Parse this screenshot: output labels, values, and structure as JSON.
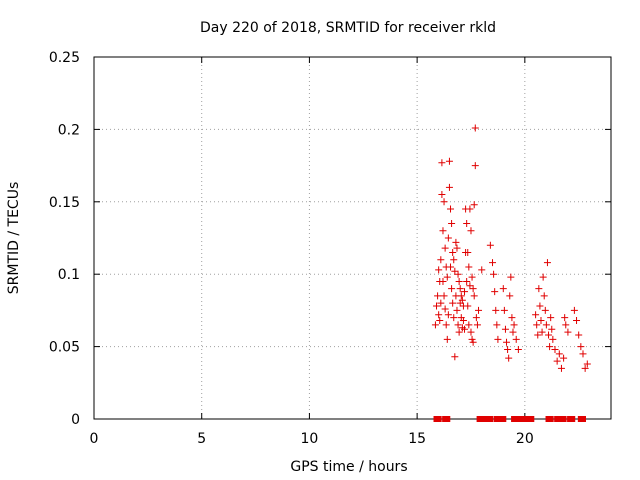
{
  "chart_data": {
    "type": "scatter",
    "title": "Day 220 of 2018, SRMTID for receiver rkld",
    "xlabel": "GPS time / hours",
    "ylabel": "SRMTID / TECUs",
    "xlim": [
      0,
      24
    ],
    "ylim": [
      0,
      0.25
    ],
    "x_ticks": [
      0,
      5,
      10,
      15,
      20
    ],
    "y_ticks": [
      0,
      0.05,
      0.1,
      0.15,
      0.2,
      0.25
    ],
    "x_tick_labels": [
      "0",
      "5",
      "10",
      "15",
      "20"
    ],
    "y_tick_labels": [
      "0",
      "0.05",
      "0.1",
      "0.15",
      "0.2",
      "0.25"
    ],
    "grid": true,
    "marker": "plus",
    "color": "#e00000",
    "series": [
      {
        "values": [
          [
            15.85,
            0.065
          ],
          [
            15.9,
            0.078
          ],
          [
            15.95,
            0.085
          ],
          [
            16.0,
            0.103
          ],
          [
            16.0,
            0.072
          ],
          [
            16.05,
            0.095
          ],
          [
            16.05,
            0.068
          ],
          [
            16.1,
            0.11
          ],
          [
            16.1,
            0.08
          ],
          [
            16.15,
            0.177
          ],
          [
            16.15,
            0.155
          ],
          [
            16.2,
            0.13
          ],
          [
            16.2,
            0.095
          ],
          [
            16.25,
            0.15
          ],
          [
            16.25,
            0.085
          ],
          [
            16.3,
            0.118
          ],
          [
            16.3,
            0.076
          ],
          [
            16.35,
            0.105
          ],
          [
            16.35,
            0.065
          ],
          [
            16.4,
            0.098
          ],
          [
            16.4,
            0.055
          ],
          [
            16.45,
            0.125
          ],
          [
            16.45,
            0.072
          ],
          [
            16.5,
            0.178
          ],
          [
            16.5,
            0.16
          ],
          [
            16.55,
            0.145
          ],
          [
            16.55,
            0.105
          ],
          [
            16.6,
            0.135
          ],
          [
            16.6,
            0.09
          ],
          [
            16.65,
            0.115
          ],
          [
            16.65,
            0.08
          ],
          [
            16.7,
            0.11
          ],
          [
            16.7,
            0.07
          ],
          [
            16.75,
            0.102
          ],
          [
            16.75,
            0.043
          ],
          [
            16.8,
            0.122
          ],
          [
            16.8,
            0.085
          ],
          [
            16.85,
            0.118
          ],
          [
            16.85,
            0.075
          ],
          [
            16.9,
            0.1
          ],
          [
            16.9,
            0.065
          ],
          [
            16.95,
            0.095
          ],
          [
            16.95,
            0.06
          ],
          [
            17.0,
            0.09
          ],
          [
            17.0,
            0.08
          ],
          [
            17.05,
            0.085
          ],
          [
            17.05,
            0.07
          ],
          [
            17.1,
            0.082
          ],
          [
            17.1,
            0.063
          ],
          [
            17.15,
            0.078
          ],
          [
            17.15,
            0.068
          ],
          [
            17.2,
            0.088
          ],
          [
            17.2,
            0.062
          ],
          [
            17.25,
            0.145
          ],
          [
            17.25,
            0.115
          ],
          [
            17.3,
            0.135
          ],
          [
            17.3,
            0.095
          ],
          [
            17.35,
            0.115
          ],
          [
            17.35,
            0.078
          ],
          [
            17.4,
            0.105
          ],
          [
            17.4,
            0.065
          ],
          [
            17.45,
            0.145
          ],
          [
            17.45,
            0.092
          ],
          [
            17.5,
            0.13
          ],
          [
            17.5,
            0.06
          ],
          [
            17.55,
            0.098
          ],
          [
            17.55,
            0.055
          ],
          [
            17.6,
            0.09
          ],
          [
            17.6,
            0.053
          ],
          [
            17.65,
            0.148
          ],
          [
            17.65,
            0.085
          ],
          [
            17.7,
            0.201
          ],
          [
            17.7,
            0.175
          ],
          [
            17.75,
            0.07
          ],
          [
            17.8,
            0.065
          ],
          [
            17.85,
            0.075
          ],
          [
            18.0,
            0.103
          ],
          [
            18.4,
            0.12
          ],
          [
            18.5,
            0.108
          ],
          [
            18.55,
            0.1
          ],
          [
            18.6,
            0.088
          ],
          [
            18.65,
            0.075
          ],
          [
            18.7,
            0.065
          ],
          [
            18.75,
            0.055
          ],
          [
            19.0,
            0.09
          ],
          [
            19.05,
            0.075
          ],
          [
            19.1,
            0.062
          ],
          [
            19.15,
            0.053
          ],
          [
            19.2,
            0.048
          ],
          [
            19.25,
            0.042
          ],
          [
            19.3,
            0.085
          ],
          [
            19.35,
            0.098
          ],
          [
            19.4,
            0.07
          ],
          [
            19.45,
            0.06
          ],
          [
            19.5,
            0.065
          ],
          [
            19.6,
            0.055
          ],
          [
            19.7,
            0.048
          ],
          [
            20.5,
            0.072
          ],
          [
            20.55,
            0.065
          ],
          [
            20.6,
            0.058
          ],
          [
            20.65,
            0.09
          ],
          [
            20.7,
            0.078
          ],
          [
            20.75,
            0.068
          ],
          [
            20.8,
            0.06
          ],
          [
            20.85,
            0.098
          ],
          [
            20.9,
            0.085
          ],
          [
            20.95,
            0.075
          ],
          [
            21.0,
            0.065
          ],
          [
            21.05,
            0.108
          ],
          [
            21.1,
            0.058
          ],
          [
            21.15,
            0.05
          ],
          [
            21.2,
            0.07
          ],
          [
            21.25,
            0.062
          ],
          [
            21.3,
            0.055
          ],
          [
            21.4,
            0.048
          ],
          [
            21.5,
            0.04
          ],
          [
            21.6,
            0.045
          ],
          [
            21.7,
            0.035
          ],
          [
            21.8,
            0.042
          ],
          [
            21.85,
            0.07
          ],
          [
            21.9,
            0.065
          ],
          [
            22.0,
            0.06
          ],
          [
            22.3,
            0.075
          ],
          [
            22.4,
            0.068
          ],
          [
            22.5,
            0.058
          ],
          [
            22.6,
            0.05
          ],
          [
            22.7,
            0.045
          ],
          [
            22.8,
            0.035
          ],
          [
            22.9,
            0.038
          ]
        ]
      },
      {
        "marker": "square",
        "values": [
          [
            15.9,
            0
          ],
          [
            16.0,
            0
          ],
          [
            16.3,
            0
          ],
          [
            16.4,
            0
          ],
          [
            17.9,
            0
          ],
          [
            18.0,
            0
          ],
          [
            18.1,
            0
          ],
          [
            18.2,
            0
          ],
          [
            18.3,
            0
          ],
          [
            18.4,
            0
          ],
          [
            18.7,
            0
          ],
          [
            18.8,
            0
          ],
          [
            18.9,
            0
          ],
          [
            19.0,
            0
          ],
          [
            19.5,
            0
          ],
          [
            19.6,
            0
          ],
          [
            19.7,
            0
          ],
          [
            19.8,
            0
          ],
          [
            19.9,
            0
          ],
          [
            20.0,
            0
          ],
          [
            20.1,
            0
          ],
          [
            20.2,
            0
          ],
          [
            20.3,
            0
          ],
          [
            21.1,
            0
          ],
          [
            21.2,
            0
          ],
          [
            21.5,
            0
          ],
          [
            21.6,
            0
          ],
          [
            21.7,
            0
          ],
          [
            21.8,
            0
          ],
          [
            22.1,
            0
          ],
          [
            22.2,
            0
          ],
          [
            22.6,
            0
          ],
          [
            22.7,
            0
          ]
        ]
      }
    ]
  }
}
